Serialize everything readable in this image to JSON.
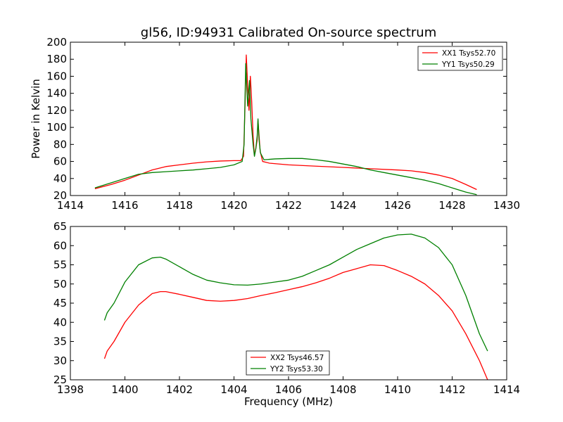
{
  "title": "gl56, ID:94931 Calibrated On-source spectrum",
  "chart_data": [
    {
      "type": "line",
      "title": "gl56, ID:94931 Calibrated On-source spectrum",
      "xlabel": "",
      "ylabel": "Power in Kelvin",
      "xlim": [
        1414,
        1430
      ],
      "ylim": [
        20,
        200
      ],
      "xticks": [
        1414,
        1416,
        1418,
        1420,
        1422,
        1424,
        1426,
        1428,
        1430
      ],
      "yticks": [
        20,
        40,
        60,
        80,
        100,
        120,
        140,
        160,
        180,
        200
      ],
      "grid": false,
      "legend_position": "top-right",
      "series": [
        {
          "name": "XX1 Tsys52.70",
          "color": "#ff0000",
          "points": [
            [
              1414.9,
              28
            ],
            [
              1415.5,
              33
            ],
            [
              1416,
              38
            ],
            [
              1416.5,
              44
            ],
            [
              1417,
              50
            ],
            [
              1417.5,
              54
            ],
            [
              1418,
              56
            ],
            [
              1418.5,
              58
            ],
            [
              1419,
              59.5
            ],
            [
              1419.5,
              60.5
            ],
            [
              1420,
              61
            ],
            [
              1420.25,
              61
            ],
            [
              1420.35,
              66
            ],
            [
              1420.4,
              120
            ],
            [
              1420.45,
              185
            ],
            [
              1420.5,
              150
            ],
            [
              1420.55,
              120
            ],
            [
              1420.6,
              160
            ],
            [
              1420.65,
              130
            ],
            [
              1420.7,
              90
            ],
            [
              1420.75,
              67
            ],
            [
              1420.8,
              75
            ],
            [
              1420.85,
              85
            ],
            [
              1420.88,
              108
            ],
            [
              1420.92,
              90
            ],
            [
              1420.96,
              72
            ],
            [
              1421.05,
              60
            ],
            [
              1421.3,
              58
            ],
            [
              1422,
              56
            ],
            [
              1423,
              54.5
            ],
            [
              1424,
              53
            ],
            [
              1425,
              51.5
            ],
            [
              1426,
              50
            ],
            [
              1426.5,
              49
            ],
            [
              1427,
              47
            ],
            [
              1427.5,
              44
            ],
            [
              1428,
              40
            ],
            [
              1428.5,
              33
            ],
            [
              1428.9,
              27
            ]
          ]
        },
        {
          "name": "YY1 Tsys50.29",
          "color": "#008000",
          "points": [
            [
              1414.9,
              29
            ],
            [
              1415.5,
              35
            ],
            [
              1416,
              40
            ],
            [
              1416.5,
              45
            ],
            [
              1417,
              47
            ],
            [
              1417.5,
              48
            ],
            [
              1418,
              49
            ],
            [
              1418.5,
              50
            ],
            [
              1419,
              51.5
            ],
            [
              1419.5,
              53
            ],
            [
              1420,
              56
            ],
            [
              1420.3,
              60
            ],
            [
              1420.37,
              80
            ],
            [
              1420.43,
              175
            ],
            [
              1420.5,
              125
            ],
            [
              1420.57,
              155
            ],
            [
              1420.62,
              110
            ],
            [
              1420.7,
              80
            ],
            [
              1420.75,
              66
            ],
            [
              1420.8,
              75
            ],
            [
              1420.85,
              90
            ],
            [
              1420.88,
              110
            ],
            [
              1420.92,
              85
            ],
            [
              1420.97,
              70
            ],
            [
              1421.1,
              62
            ],
            [
              1421.5,
              63
            ],
            [
              1422,
              63.5
            ],
            [
              1422.5,
              63.5
            ],
            [
              1423,
              62
            ],
            [
              1423.5,
              60
            ],
            [
              1424,
              57
            ],
            [
              1424.5,
              54
            ],
            [
              1425,
              50
            ],
            [
              1425.5,
              47
            ],
            [
              1426,
              44
            ],
            [
              1426.5,
              41
            ],
            [
              1427,
              38
            ],
            [
              1427.5,
              34
            ],
            [
              1428,
              29
            ],
            [
              1428.5,
              24
            ],
            [
              1428.9,
              21
            ]
          ]
        }
      ]
    },
    {
      "type": "line",
      "title": "",
      "xlabel": "Frequency (MHz)",
      "ylabel": "",
      "xlim": [
        1398,
        1414
      ],
      "ylim": [
        25,
        65
      ],
      "xticks": [
        1398,
        1400,
        1402,
        1404,
        1406,
        1408,
        1410,
        1412,
        1414
      ],
      "yticks": [
        25,
        30,
        35,
        40,
        45,
        50,
        55,
        60,
        65
      ],
      "grid": false,
      "legend_position": "bottom-center",
      "series": [
        {
          "name": "XX2 Tsys46.57",
          "color": "#ff0000",
          "points": [
            [
              1399.25,
              30.5
            ],
            [
              1399.35,
              32.5
            ],
            [
              1399.6,
              35
            ],
            [
              1400,
              40
            ],
            [
              1400.5,
              44.5
            ],
            [
              1401,
              47.5
            ],
            [
              1401.3,
              48
            ],
            [
              1401.5,
              48
            ],
            [
              1402,
              47.3
            ],
            [
              1402.5,
              46.5
            ],
            [
              1403,
              45.7
            ],
            [
              1403.5,
              45.5
            ],
            [
              1404,
              45.7
            ],
            [
              1404.5,
              46.2
            ],
            [
              1405,
              47
            ],
            [
              1405.5,
              47.7
            ],
            [
              1406,
              48.5
            ],
            [
              1406.5,
              49.3
            ],
            [
              1407,
              50.3
            ],
            [
              1407.5,
              51.5
            ],
            [
              1408,
              53
            ],
            [
              1408.5,
              54
            ],
            [
              1409,
              55
            ],
            [
              1409.5,
              54.8
            ],
            [
              1410,
              53.5
            ],
            [
              1410.5,
              52
            ],
            [
              1411,
              50
            ],
            [
              1411.5,
              47
            ],
            [
              1412,
              43
            ],
            [
              1412.5,
              37
            ],
            [
              1413,
              30
            ],
            [
              1413.3,
              25
            ]
          ]
        },
        {
          "name": "YY2 Tsys53.30",
          "color": "#008000",
          "points": [
            [
              1399.25,
              40.5
            ],
            [
              1399.35,
              42.5
            ],
            [
              1399.6,
              45
            ],
            [
              1400,
              50.5
            ],
            [
              1400.5,
              55
            ],
            [
              1401,
              56.8
            ],
            [
              1401.3,
              57
            ],
            [
              1401.5,
              56.5
            ],
            [
              1402,
              54.5
            ],
            [
              1402.5,
              52.5
            ],
            [
              1403,
              51
            ],
            [
              1403.5,
              50.3
            ],
            [
              1404,
              49.8
            ],
            [
              1404.5,
              49.7
            ],
            [
              1405,
              50
            ],
            [
              1405.5,
              50.5
            ],
            [
              1406,
              51
            ],
            [
              1406.5,
              52
            ],
            [
              1407,
              53.5
            ],
            [
              1407.5,
              55
            ],
            [
              1408,
              57
            ],
            [
              1408.5,
              59
            ],
            [
              1409,
              60.5
            ],
            [
              1409.5,
              62
            ],
            [
              1410,
              62.8
            ],
            [
              1410.5,
              63
            ],
            [
              1411,
              62
            ],
            [
              1411.5,
              59.5
            ],
            [
              1412,
              55
            ],
            [
              1412.5,
              47
            ],
            [
              1413,
              37
            ],
            [
              1413.3,
              32.5
            ]
          ]
        }
      ]
    }
  ]
}
